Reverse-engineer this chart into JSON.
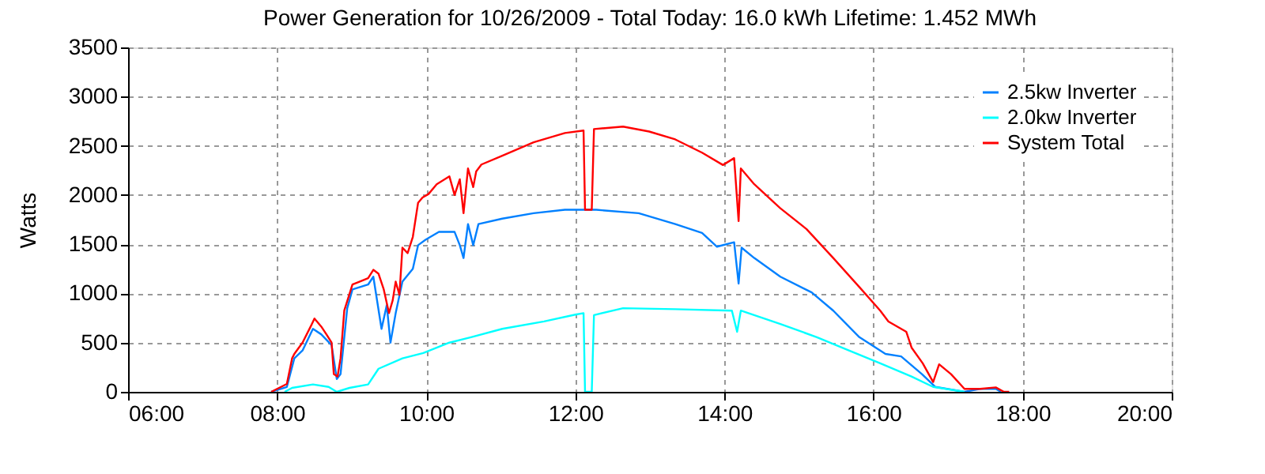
{
  "chart_data": {
    "type": "line",
    "title": "Power Generation for 10/26/2009 - Total Today: 16.0 kWh   Lifetime: 1.452 MWh",
    "ylabel": "Watts",
    "xlim": [
      6,
      20
    ],
    "ylim": [
      0,
      3500
    ],
    "xticks": [
      {
        "value": 6,
        "label": "06:00"
      },
      {
        "value": 8,
        "label": "08:00"
      },
      {
        "value": 10,
        "label": "10:00"
      },
      {
        "value": 12,
        "label": "12:00"
      },
      {
        "value": 14,
        "label": "14:00"
      },
      {
        "value": 16,
        "label": "16:00"
      },
      {
        "value": 18,
        "label": "18:00"
      },
      {
        "value": 20,
        "label": "20:00"
      }
    ],
    "yticks": [
      0,
      500,
      1000,
      1500,
      2000,
      2500,
      3000,
      3500
    ],
    "grid": true,
    "legend": "top right",
    "marker": "none",
    "line_style": "solid",
    "series": [
      {
        "name": "2.5kw Inverter",
        "color": "#0080ff",
        "x": [
          7.92,
          8.13,
          8.23,
          8.34,
          8.48,
          8.59,
          8.73,
          8.8,
          8.85,
          8.94,
          9.01,
          9.22,
          9.29,
          9.4,
          9.47,
          9.52,
          9.59,
          9.68,
          9.82,
          9.89,
          9.99,
          10.17,
          10.38,
          10.45,
          10.5,
          10.56,
          10.63,
          10.7,
          11.02,
          11.44,
          11.86,
          12.28,
          12.85,
          13.34,
          13.7,
          13.9,
          14.13,
          14.19,
          14.23,
          14.4,
          14.75,
          15.17,
          15.46,
          15.81,
          16.16,
          16.37,
          16.65,
          16.83,
          17.22,
          17.43,
          17.64,
          17.71
        ],
        "values": [
          0,
          50,
          340,
          420,
          640,
          585,
          475,
          130,
          180,
          850,
          1040,
          1090,
          1170,
          640,
          880,
          500,
          800,
          1120,
          1250,
          1490,
          1545,
          1625,
          1625,
          1490,
          1360,
          1705,
          1490,
          1705,
          1760,
          1815,
          1850,
          1850,
          1815,
          1705,
          1615,
          1475,
          1520,
          1100,
          1465,
          1360,
          1170,
          1010,
          825,
          555,
          385,
          360,
          180,
          50,
          0,
          30,
          30,
          0
        ]
      },
      {
        "name": "2.0kw Inverter",
        "color": "#00ffff",
        "x": [
          8.1,
          8.2,
          8.48,
          8.69,
          8.8,
          8.97,
          9.22,
          9.36,
          9.68,
          9.96,
          10.31,
          10.6,
          11.02,
          11.58,
          12.0,
          12.11,
          12.13,
          12.22,
          12.25,
          12.64,
          13.34,
          14.1,
          14.17,
          14.22,
          14.75,
          15.24,
          15.67,
          16.09,
          16.51,
          16.8,
          17.22
        ],
        "values": [
          0,
          40,
          75,
          50,
          0,
          40,
          75,
          235,
          340,
          395,
          500,
          555,
          640,
          715,
          785,
          800,
          0,
          0,
          780,
          850,
          840,
          825,
          610,
          825,
          690,
          555,
          420,
          290,
          155,
          50,
          0
        ]
      },
      {
        "name": "System Total",
        "color": "#ff0000",
        "x": [
          7.92,
          8.13,
          8.2,
          8.23,
          8.34,
          8.45,
          8.5,
          8.59,
          8.66,
          8.73,
          8.76,
          8.81,
          8.85,
          8.9,
          9.01,
          9.11,
          9.22,
          9.29,
          9.36,
          9.43,
          9.5,
          9.55,
          9.59,
          9.64,
          9.68,
          9.75,
          9.82,
          9.89,
          9.95,
          10.03,
          10.14,
          10.31,
          10.38,
          10.45,
          10.5,
          10.56,
          10.63,
          10.67,
          10.74,
          11.02,
          11.44,
          11.86,
          12.11,
          12.13,
          12.22,
          12.25,
          12.64,
          12.99,
          13.34,
          13.7,
          13.98,
          14.13,
          14.19,
          14.22,
          14.4,
          14.75,
          15.1,
          15.46,
          15.81,
          16.09,
          16.2,
          16.44,
          16.51,
          16.66,
          16.8,
          16.88,
          17.04,
          17.22,
          17.43,
          17.64,
          17.75,
          17.82
        ],
        "values": [
          0,
          80,
          340,
          385,
          500,
          665,
          745,
          665,
          585,
          500,
          180,
          155,
          340,
          825,
          1090,
          1120,
          1155,
          1240,
          1200,
          1040,
          800,
          930,
          1120,
          985,
          1465,
          1410,
          1575,
          1920,
          1975,
          2010,
          2110,
          2190,
          2000,
          2160,
          1815,
          2270,
          2080,
          2240,
          2310,
          2400,
          2535,
          2630,
          2655,
          1850,
          1850,
          2670,
          2695,
          2645,
          2565,
          2430,
          2305,
          2375,
          1735,
          2270,
          2110,
          1865,
          1655,
          1360,
          1065,
          825,
          715,
          610,
          450,
          290,
          100,
          280,
          180,
          30,
          30,
          45,
          0,
          0
        ]
      }
    ]
  }
}
